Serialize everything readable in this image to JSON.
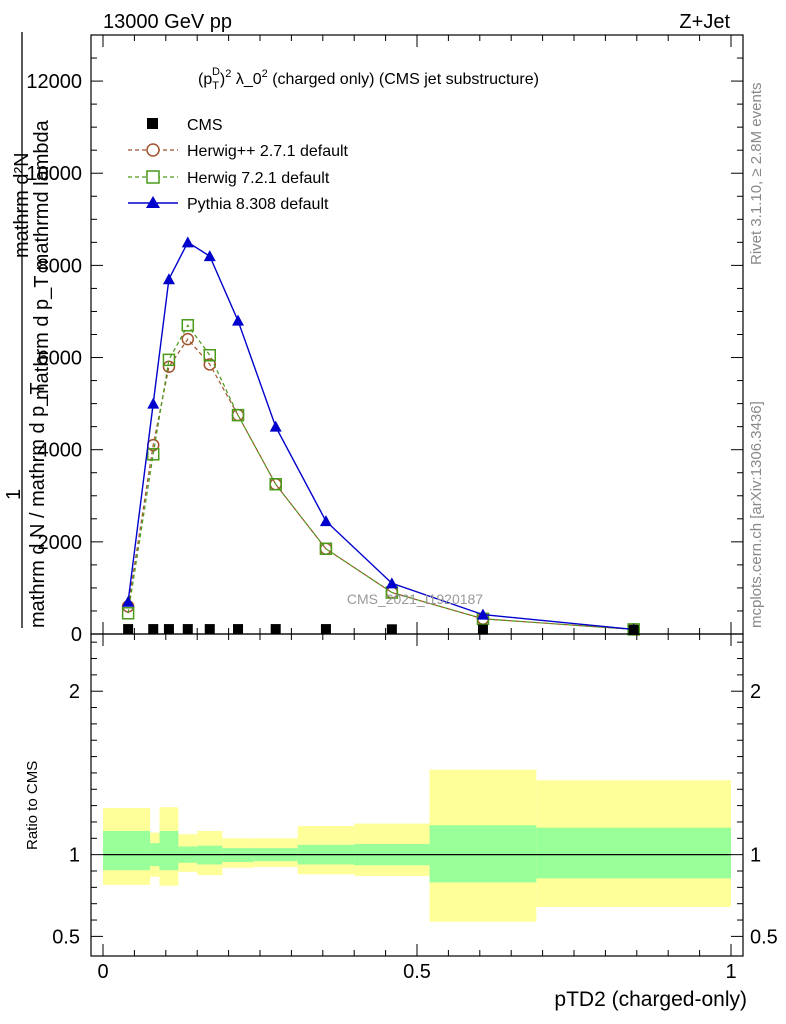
{
  "header": {
    "energy_label": "13000 GeV pp",
    "process_label": "Z+Jet",
    "rivet_label": "Rivet 3.1.10, ≥ 2.8M events",
    "mcplots_label": "mcplots.cern.ch [arXiv:1306.3436]",
    "analysis_tag": "CMS_2021_I1920187"
  },
  "colors": {
    "cms": "#000000",
    "herwig_pp": "#a0522d",
    "herwig7": "#4a9a1a",
    "pythia": "#0000cc",
    "band_inner": "#99ff99",
    "band_outer": "#ffff99"
  },
  "chart_data": [
    {
      "type": "line",
      "panel": "main",
      "title_parts": {
        "prefix": "(p",
        "sup_d": "D",
        "sub_t": "T",
        "close": ")",
        "sup_2": "2",
        "middle": " λ_0",
        "sup_2b": "2",
        "suffix": " (charged only) (CMS jet substructure)"
      },
      "ylabel_top": "mathrm d²N",
      "ylabel_middle": "mathrm d p_T mathrmd lambda",
      "ylabel_fraction": "1",
      "ylabel_bottom": "mathrm d N / mathrm d p_T",
      "ylim": [
        0,
        13000
      ],
      "yticks": [
        0,
        2000,
        4000,
        6000,
        8000,
        10000,
        12000
      ],
      "ytick_labels": [
        "0",
        "2000",
        "4000",
        "6000",
        "8000",
        "10000",
        "12000"
      ],
      "legend_position": "top-left",
      "series": [
        {
          "name": "CMS",
          "marker": "square",
          "x": [
            0.04,
            0.08,
            0.105,
            0.135,
            0.17,
            0.215,
            0.275,
            0.355,
            0.46,
            0.605,
            0.845
          ],
          "y": [
            20,
            20,
            20,
            20,
            20,
            20,
            20,
            20,
            15,
            8,
            2
          ]
        },
        {
          "name": "Herwig++ 2.7.1 default",
          "marker": "open-circle",
          "x": [
            0.04,
            0.08,
            0.105,
            0.135,
            0.17,
            0.215,
            0.275,
            0.355,
            0.46,
            0.605,
            0.845
          ],
          "y": [
            600,
            4100,
            5800,
            6400,
            5850,
            4750,
            3250,
            1850,
            900,
            330,
            100
          ]
        },
        {
          "name": "Herwig 7.2.1 default",
          "marker": "open-square",
          "x": [
            0.04,
            0.08,
            0.105,
            0.135,
            0.17,
            0.215,
            0.275,
            0.355,
            0.46,
            0.605,
            0.845
          ],
          "y": [
            450,
            3900,
            5950,
            6700,
            6050,
            4750,
            3250,
            1850,
            900,
            330,
            100
          ]
        },
        {
          "name": "Pythia 8.308 default",
          "marker": "filled-triangle",
          "x": [
            0.04,
            0.08,
            0.105,
            0.135,
            0.17,
            0.215,
            0.275,
            0.355,
            0.46,
            0.605,
            0.845
          ],
          "y": [
            700,
            5000,
            7700,
            8500,
            8200,
            6800,
            4500,
            2450,
            1100,
            420,
            100
          ]
        }
      ]
    },
    {
      "type": "area",
      "panel": "ratio",
      "ylabel": "Ratio to CMS",
      "xlabel": "pTD2 (charged-only)",
      "xlim": [
        0,
        1
      ],
      "xticks": [
        0,
        0.5,
        1
      ],
      "xtick_labels": [
        "0",
        "0.5",
        "1"
      ],
      "ylim": [
        0.38,
        2.35
      ],
      "yticks": [
        0.5,
        1,
        2
      ],
      "ytick_labels": [
        "0.5",
        "1",
        "2"
      ],
      "reference_line": 1,
      "bin_edges": [
        0.0,
        0.075,
        0.09,
        0.12,
        0.15,
        0.19,
        0.24,
        0.31,
        0.4,
        0.52,
        0.69,
        1.0
      ],
      "inner_band": {
        "lo": [
          0.905,
          0.93,
          0.905,
          0.95,
          0.94,
          0.955,
          0.96,
          0.94,
          0.935,
          0.83,
          0.855
        ],
        "hi": [
          1.145,
          1.07,
          1.145,
          1.05,
          1.055,
          1.04,
          1.04,
          1.06,
          1.065,
          1.18,
          1.165
        ]
      },
      "outer_band": {
        "lo": [
          0.815,
          0.865,
          0.81,
          0.895,
          0.875,
          0.92,
          0.925,
          0.88,
          0.87,
          0.59,
          0.68
        ],
        "hi": [
          1.285,
          1.135,
          1.29,
          1.125,
          1.145,
          1.1,
          1.1,
          1.175,
          1.19,
          1.52,
          1.455
        ]
      }
    }
  ]
}
